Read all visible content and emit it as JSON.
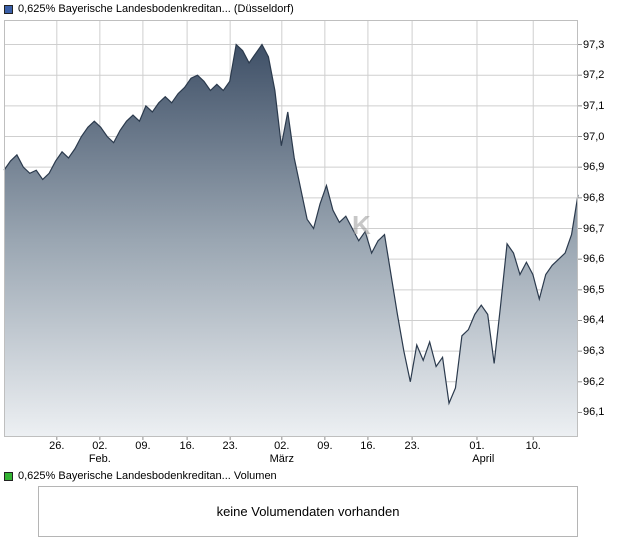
{
  "header": {
    "title": "0,625% Bayerische Landesbodenkreditan... (Düsseldorf)"
  },
  "volume_section": {
    "title": "0,625% Bayerische Landesbodenkreditan... Volumen",
    "message": "keine Volumendaten vorhanden"
  },
  "watermark": "K",
  "colors": {
    "series_blue": "#3A5FA8",
    "volume_green": "#33B333",
    "line": "#2B3A4D",
    "grid": "#CFCFCF",
    "frame": "#BFBFBF",
    "tick": "#8C8C8C",
    "area_stops": [
      "#3F5067",
      "#9AA6B2",
      "#EDF0F3"
    ]
  },
  "chart_data": {
    "type": "area",
    "title": "0,625% Bayerische Landesbodenkreditan... (Düsseldorf)",
    "xlabel": "",
    "ylabel": "",
    "grid": true,
    "legend_position": "top-left",
    "ylim": [
      96.02,
      97.38
    ],
    "y_ticks": [
      {
        "label": "97,3",
        "value": 97.3
      },
      {
        "label": "97,2",
        "value": 97.2
      },
      {
        "label": "97,1",
        "value": 97.1
      },
      {
        "label": "97,0",
        "value": 97.0
      },
      {
        "label": "96,9",
        "value": 96.9
      },
      {
        "label": "96,8",
        "value": 96.8
      },
      {
        "label": "96,7",
        "value": 96.7
      },
      {
        "label": "96,6",
        "value": 96.6
      },
      {
        "label": "96,5",
        "value": 96.5
      },
      {
        "label": "96,4",
        "value": 96.4
      },
      {
        "label": "96,3",
        "value": 96.3
      },
      {
        "label": "96,2",
        "value": 96.2
      },
      {
        "label": "96,1",
        "value": 96.1
      }
    ],
    "x_ticks": [
      {
        "label": "26.",
        "pos": 0.092
      },
      {
        "label": "02.",
        "pos": 0.167
      },
      {
        "label": "09.",
        "pos": 0.242
      },
      {
        "label": "16.",
        "pos": 0.319
      },
      {
        "label": "23.",
        "pos": 0.394
      },
      {
        "label": "02.",
        "pos": 0.484
      },
      {
        "label": "09.",
        "pos": 0.559
      },
      {
        "label": "16.",
        "pos": 0.634
      },
      {
        "label": "23.",
        "pos": 0.711
      },
      {
        "label": "01.",
        "pos": 0.824
      },
      {
        "label": "10.",
        "pos": 0.922
      }
    ],
    "month_labels": [
      {
        "label": "Feb.",
        "pos": 0.167
      },
      {
        "label": "März",
        "pos": 0.484
      },
      {
        "label": "April",
        "pos": 0.835
      }
    ],
    "values": [
      96.89,
      96.92,
      96.94,
      96.9,
      96.88,
      96.89,
      96.86,
      96.88,
      96.92,
      96.95,
      96.93,
      96.96,
      97.0,
      97.03,
      97.05,
      97.03,
      97.0,
      96.98,
      97.02,
      97.05,
      97.07,
      97.05,
      97.1,
      97.08,
      97.11,
      97.13,
      97.11,
      97.14,
      97.16,
      97.19,
      97.2,
      97.18,
      97.15,
      97.17,
      97.15,
      97.18,
      97.3,
      97.28,
      97.24,
      97.27,
      97.3,
      97.26,
      97.15,
      96.97,
      97.08,
      96.93,
      96.83,
      96.73,
      96.7,
      96.78,
      96.84,
      96.76,
      96.72,
      96.74,
      96.7,
      96.66,
      96.69,
      96.62,
      96.66,
      96.68,
      96.55,
      96.42,
      96.3,
      96.2,
      96.32,
      96.27,
      96.33,
      96.25,
      96.28,
      96.13,
      96.18,
      96.35,
      96.37,
      96.42,
      96.45,
      96.42,
      96.26,
      96.45,
      96.65,
      96.62,
      96.55,
      96.59,
      96.55,
      96.47,
      96.55,
      96.58,
      96.6,
      96.62,
      96.68,
      96.81
    ]
  }
}
